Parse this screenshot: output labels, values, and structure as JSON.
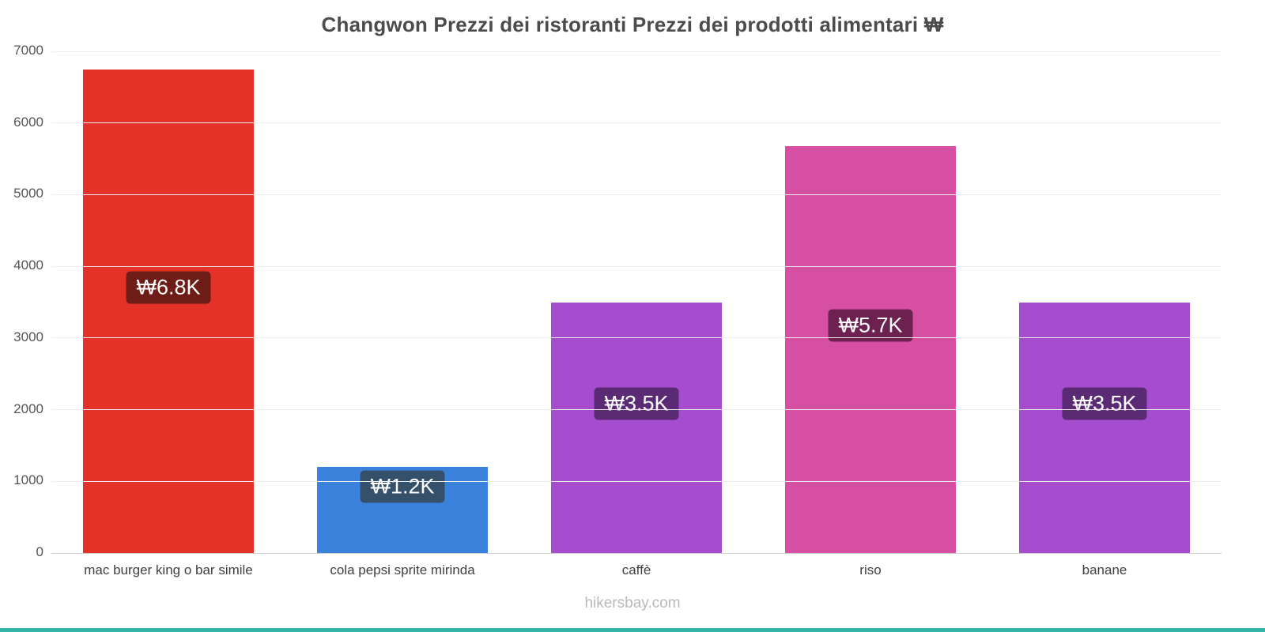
{
  "title": "Changwon Prezzi dei ristoranti Prezzi dei prodotti alimentari ₩",
  "footer": "hikersbay.com",
  "accent_strip_color": "#35b3a6",
  "chart_data": {
    "type": "bar",
    "title": "Changwon Prezzi dei ristoranti Prezzi dei prodotti alimentari ₩",
    "categories": [
      "mac burger king o bar simile",
      "cola pepsi sprite mirinda",
      "caffè",
      "riso",
      "banane"
    ],
    "values": [
      6750,
      1200,
      3500,
      5680,
      3500
    ],
    "bar_labels": [
      "₩6.8K",
      "₩1.2K",
      "₩3.5K",
      "₩5.7K",
      "₩3.5K"
    ],
    "bar_colors": [
      "#e53228",
      "#3b82dd",
      "#a64ccf",
      "#d64fa2",
      "#a64ccf"
    ],
    "badge_colors": [
      "#6d1d15",
      "#35506b",
      "#5b2a74",
      "#6d2150",
      "#5b2a74"
    ],
    "xlabel": "",
    "ylabel": "",
    "ylim": [
      0,
      7000
    ],
    "yticks": [
      "0",
      "1000",
      "2000",
      "3000",
      "4000",
      "5000",
      "6000",
      "7000"
    ],
    "grid": true,
    "legend": false
  }
}
